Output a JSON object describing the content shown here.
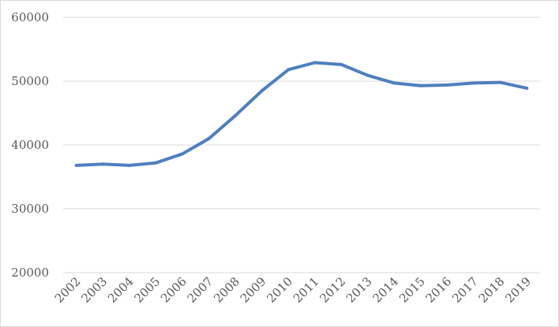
{
  "chart_data": {
    "type": "line",
    "title": "",
    "xlabel": "",
    "ylabel": "",
    "categories": [
      "2002",
      "2003",
      "2004",
      "2005",
      "2006",
      "2007",
      "2008",
      "2009",
      "2010",
      "2011",
      "2012",
      "2013",
      "2014",
      "2015",
      "2016",
      "2017",
      "2018",
      "2019"
    ],
    "series": [
      {
        "values": [
          36800,
          37000,
          36800,
          37200,
          38600,
          41000,
          44600,
          48500,
          51800,
          52900,
          52600,
          50900,
          49700,
          49300,
          49400,
          49700,
          49800,
          48900
        ]
      }
    ],
    "ylim": [
      20000,
      60000
    ],
    "yticks": [
      20000,
      30000,
      40000,
      50000,
      60000
    ],
    "grid": true,
    "legend": "none",
    "colors": {
      "series": "#4f7fbf",
      "grid": "#d9d9d9",
      "text": "#595959"
    }
  }
}
